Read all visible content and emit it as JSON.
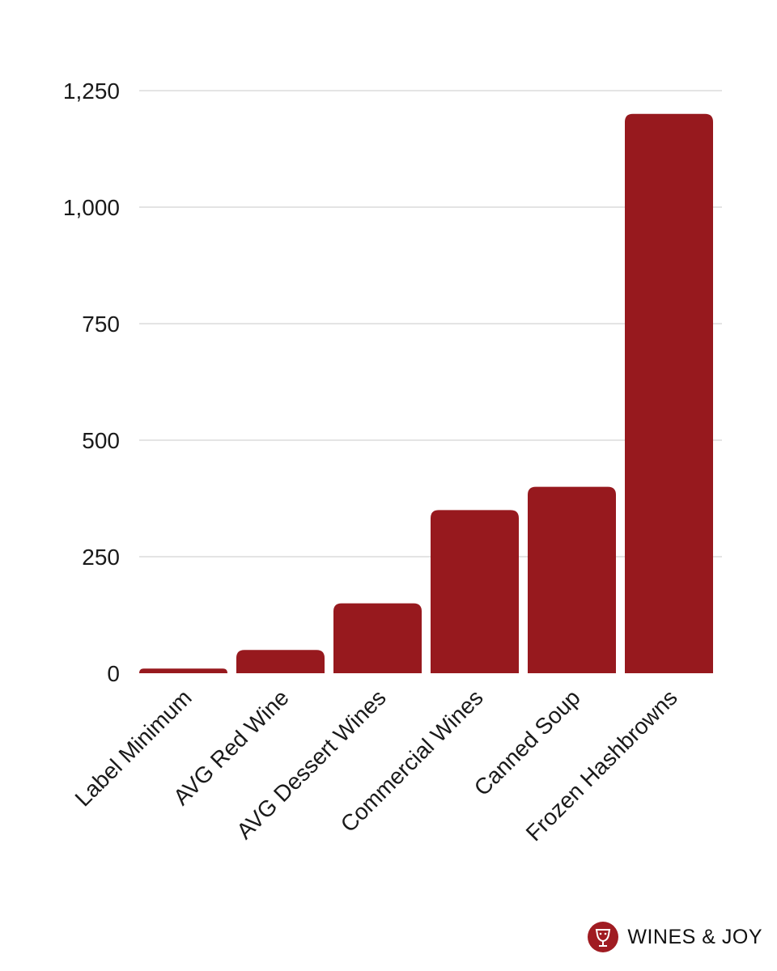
{
  "colors": {
    "bar": "#97191e",
    "brand": "#a01c22",
    "text": "#1a1a1a",
    "grid": "#d4d4d4"
  },
  "chart_data": {
    "type": "bar",
    "title": "",
    "xlabel": "",
    "ylabel": "",
    "categories": [
      "Label Minimum",
      "AVG Red Wine",
      "AVG Dessert Wines",
      "Commercial Wines",
      "Canned Soup",
      "Frozen Hashbrowns"
    ],
    "values": [
      10,
      50,
      150,
      350,
      400,
      1200
    ],
    "ylim": [
      0,
      1250
    ],
    "yticks": [
      0,
      250,
      500,
      750,
      1000,
      1250
    ],
    "ytick_labels": [
      "0",
      "250",
      "500",
      "750",
      "1,000",
      "1,250"
    ],
    "grid": true,
    "legend": "none"
  },
  "brand": {
    "name": "WINES & JOY",
    "icon": "wine-glass-logo-icon"
  }
}
